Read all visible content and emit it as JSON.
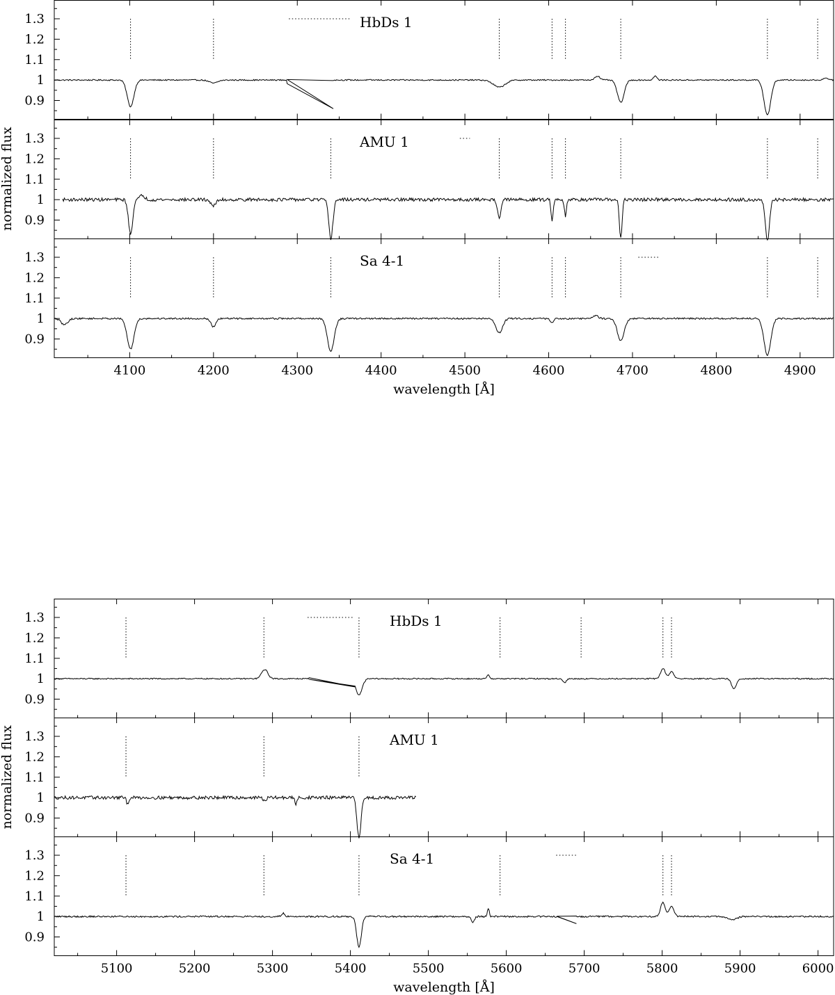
{
  "chart_data": [
    {
      "type": "line",
      "title": "",
      "xlabel": "wavelength [Å]",
      "ylabel": "normalized flux",
      "xlim": [
        4010,
        4940
      ],
      "ylim": [
        0.83,
        1.39
      ],
      "x_ticks": [
        4100,
        4200,
        4300,
        4400,
        4500,
        4600,
        4700,
        4800,
        4900
      ],
      "y_ticks": [
        0.9,
        1,
        1.1,
        1.2,
        1.3
      ],
      "y_tick_labels": [
        "0.9",
        "1",
        "1.1",
        "1.2",
        "1.3"
      ],
      "grid": false,
      "legend": "none",
      "panels": [
        {
          "label": "HbDs 1",
          "markers": [
            4101,
            4200,
            4541,
            4604,
            4620,
            4686,
            4861,
            4921
          ],
          "gaps": [
            [
              4290,
              4363
            ]
          ],
          "continuum_start": 4010,
          "continuum_end": 4940,
          "noise": 0.003,
          "bridges": [
            {
              "x1": 4288,
              "y1": 0.982,
              "x2": 4343,
              "y2": 0.86
            }
          ],
          "features": [
            {
              "center": 4101,
              "depth": 0.13,
              "width": 4
            },
            {
              "center": 4200,
              "depth": 0.015,
              "width": 5
            },
            {
              "center": 4541,
              "depth": 0.035,
              "width": 7
            },
            {
              "center": 4658,
              "depth": -0.02,
              "width": 3
            },
            {
              "center": 4686,
              "depth": 0.11,
              "width": 4
            },
            {
              "center": 4727,
              "depth": -0.02,
              "width": 2
            },
            {
              "center": 4861,
              "depth": 0.17,
              "width": 4
            },
            {
              "center": 4931,
              "depth": -0.01,
              "width": 3
            }
          ]
        },
        {
          "label": "AMU 1",
          "markers": [
            4101,
            4200,
            4340,
            4541,
            4604,
            4620,
            4686,
            4861,
            4921
          ],
          "gaps": [
            [
              4494,
              4506
            ]
          ],
          "continuum_start": 4020,
          "continuum_end": 4940,
          "noise": 0.008,
          "bridges": [],
          "features": [
            {
              "center": 4101,
              "depth": 0.17,
              "width": 2.5
            },
            {
              "center": 4115,
              "depth": -0.02,
              "width": 3
            },
            {
              "center": 4200,
              "depth": 0.03,
              "width": 3
            },
            {
              "center": 4340,
              "depth": 0.19,
              "width": 2.5
            },
            {
              "center": 4541,
              "depth": 0.09,
              "width": 2
            },
            {
              "center": 4604,
              "depth": 0.1,
              "width": 1.2
            },
            {
              "center": 4620,
              "depth": 0.08,
              "width": 1.2
            },
            {
              "center": 4686,
              "depth": 0.19,
              "width": 1.6
            },
            {
              "center": 4861,
              "depth": 0.2,
              "width": 2.5
            }
          ]
        },
        {
          "label": "Sa 4-1",
          "markers": [
            4101,
            4200,
            4340,
            4541,
            4604,
            4620,
            4686,
            4861,
            4921
          ],
          "gaps": [
            [
              4707,
              4731
            ]
          ],
          "continuum_start": 4010,
          "continuum_end": 4940,
          "noise": 0.004,
          "bridges": [],
          "features": [
            {
              "center": 4022,
              "depth": 0.03,
              "width": 4
            },
            {
              "center": 4101,
              "depth": 0.15,
              "width": 4
            },
            {
              "center": 4200,
              "depth": 0.04,
              "width": 3
            },
            {
              "center": 4340,
              "depth": 0.16,
              "width": 4
            },
            {
              "center": 4541,
              "depth": 0.07,
              "width": 4
            },
            {
              "center": 4604,
              "depth": 0.02,
              "width": 2
            },
            {
              "center": 4656,
              "depth": -0.015,
              "width": 3
            },
            {
              "center": 4686,
              "depth": 0.11,
              "width": 4
            },
            {
              "center": 4861,
              "depth": 0.18,
              "width": 4
            }
          ]
        }
      ]
    },
    {
      "type": "line",
      "title": "",
      "xlabel": "wavelength [Å]",
      "ylabel": "normalized flux",
      "xlim": [
        5020,
        6020
      ],
      "ylim": [
        0.83,
        1.39
      ],
      "x_ticks": [
        5100,
        5200,
        5300,
        5400,
        5500,
        5600,
        5700,
        5800,
        5900,
        6000
      ],
      "y_ticks": [
        0.9,
        1,
        1.1,
        1.2,
        1.3
      ],
      "y_tick_labels": [
        "0.9",
        "1",
        "1.1",
        "1.2",
        "1.3"
      ],
      "grid": false,
      "legend": "none",
      "panels": [
        {
          "label": "HbDs 1",
          "markers": [
            5112,
            5289,
            5411,
            5592,
            5696,
            5801,
            5812
          ],
          "gaps": [
            [
              5345,
              5404
            ]
          ],
          "continuum_start": 5020,
          "continuum_end": 6020,
          "noise": 0.003,
          "bridges": [
            {
              "x1": 5347,
              "y1": 1.005,
              "x2": 5406,
              "y2": 0.96
            }
          ],
          "features": [
            {
              "center": 5290,
              "depth": -0.045,
              "width": 4
            },
            {
              "center": 5411,
              "depth": 0.08,
              "width": 4
            },
            {
              "center": 5577,
              "depth": -0.02,
              "width": 1.5
            },
            {
              "center": 5675,
              "depth": 0.02,
              "width": 2
            },
            {
              "center": 5801,
              "depth": -0.05,
              "width": 3
            },
            {
              "center": 5812,
              "depth": -0.035,
              "width": 3
            },
            {
              "center": 5892,
              "depth": 0.05,
              "width": 3
            }
          ]
        },
        {
          "label": "AMU 1",
          "markers": [
            5112,
            5289,
            5411
          ],
          "gaps": [],
          "continuum_start": 5020,
          "continuum_end": 5484,
          "noise": 0.008,
          "bridges": [],
          "features": [
            {
              "center": 5114,
              "depth": 0.03,
              "width": 1.5
            },
            {
              "center": 5290,
              "depth": 0.015,
              "width": 2
            },
            {
              "center": 5330,
              "depth": 0.03,
              "width": 1.5
            },
            {
              "center": 5411,
              "depth": 0.2,
              "width": 2.5
            }
          ]
        },
        {
          "label": "Sa 4-1",
          "markers": [
            5112,
            5289,
            5411,
            5592,
            5801,
            5812
          ],
          "gaps": [
            [
              5664,
              5692
            ]
          ],
          "continuum_start": 5020,
          "continuum_end": 6020,
          "noise": 0.004,
          "bridges": [
            {
              "x1": 5665,
              "y1": 1.0,
              "x2": 5690,
              "y2": 0.965
            }
          ],
          "features": [
            {
              "center": 5314,
              "depth": -0.015,
              "width": 2
            },
            {
              "center": 5411,
              "depth": 0.15,
              "width": 3
            },
            {
              "center": 5557,
              "depth": 0.03,
              "width": 2
            },
            {
              "center": 5577,
              "depth": -0.04,
              "width": 1.2
            },
            {
              "center": 5801,
              "depth": -0.07,
              "width": 3
            },
            {
              "center": 5812,
              "depth": -0.05,
              "width": 3
            },
            {
              "center": 5890,
              "depth": 0.015,
              "width": 6
            }
          ]
        }
      ]
    }
  ]
}
